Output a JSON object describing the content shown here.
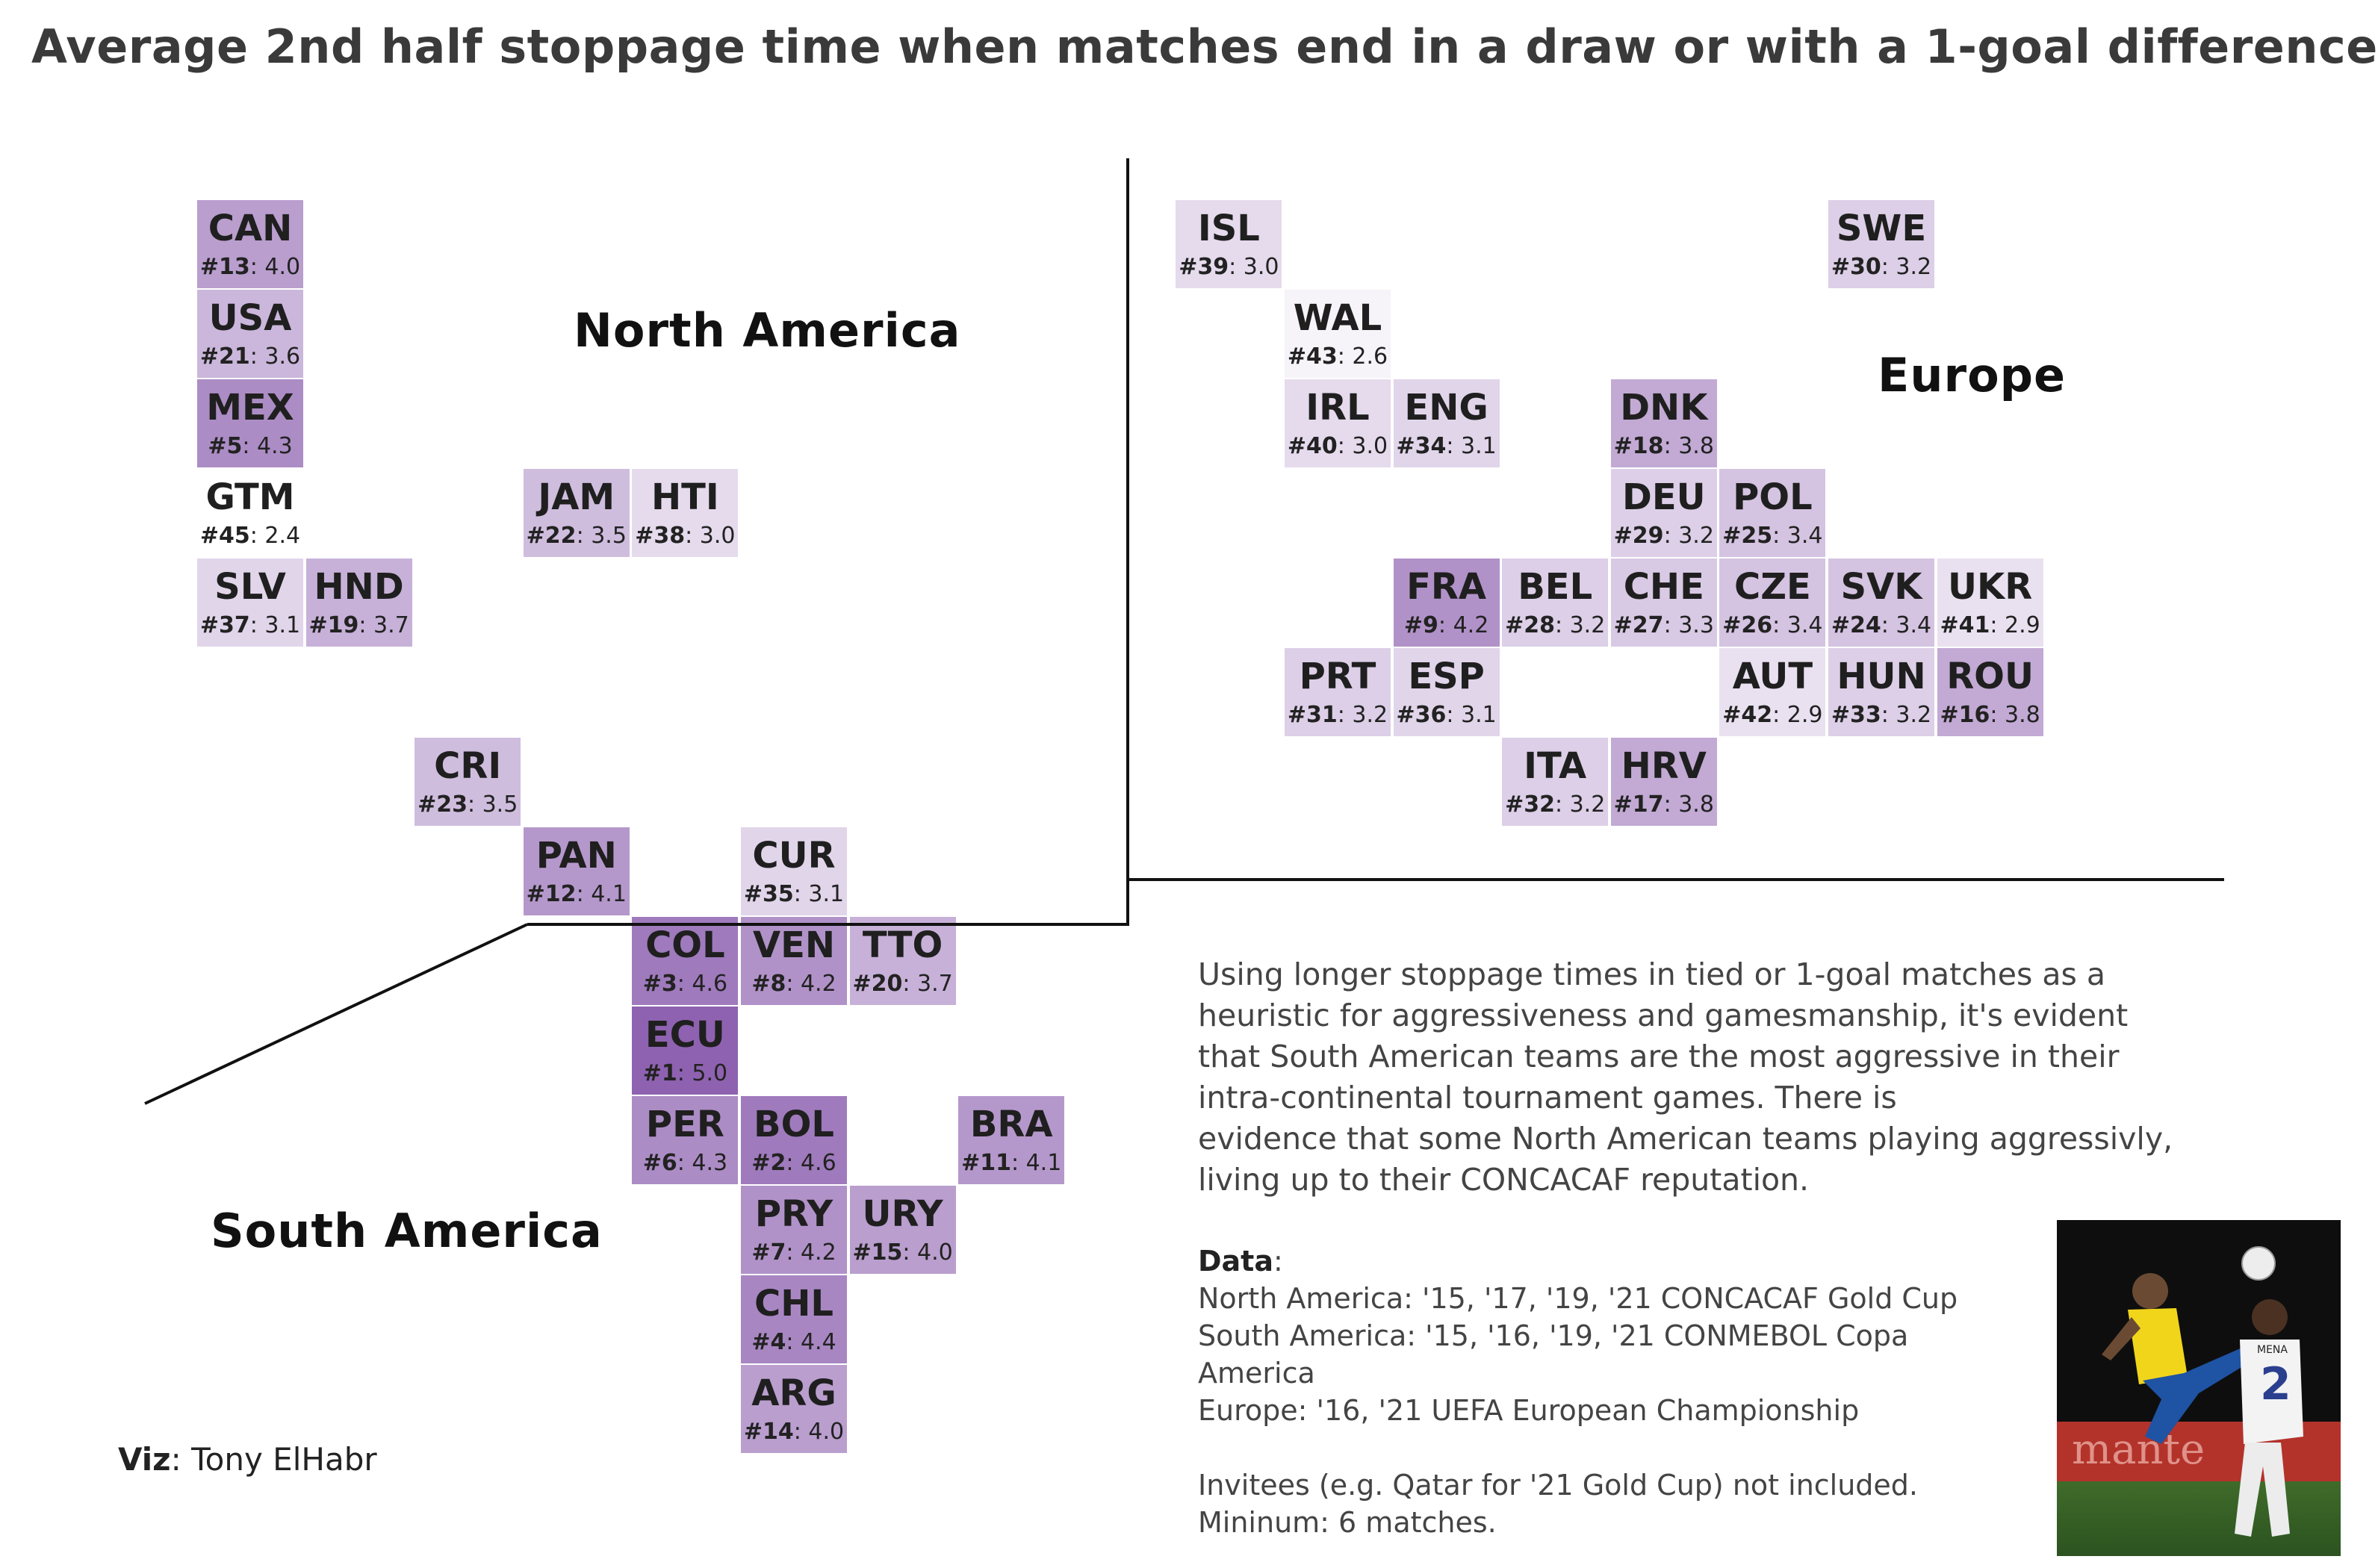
{
  "title": "Average 2nd half stoppage time when matches end in a draw or with a 1-goal difference",
  "regions": {
    "north_america": "North America",
    "europe": "Europe",
    "south_america": "South America"
  },
  "chart_data": {
    "type": "heatmap",
    "title": "Average 2nd half stoppage time when matches end in a draw or with a 1-goal difference",
    "value_range": [
      2.4,
      5.0
    ],
    "colors": {
      "low": "#ffffff",
      "high": "#8e62b0"
    },
    "cells": [
      {
        "code": "CAN",
        "rank": 13,
        "value": 4.0,
        "region": "North America",
        "col": 0,
        "row": 0
      },
      {
        "code": "USA",
        "rank": 21,
        "value": 3.6,
        "region": "North America",
        "col": 0,
        "row": 1
      },
      {
        "code": "MEX",
        "rank": 5,
        "value": 4.3,
        "region": "North America",
        "col": 0,
        "row": 2
      },
      {
        "code": "GTM",
        "rank": 45,
        "value": 2.4,
        "region": "North America",
        "col": 0,
        "row": 3
      },
      {
        "code": "SLV",
        "rank": 37,
        "value": 3.1,
        "region": "North America",
        "col": 0,
        "row": 4
      },
      {
        "code": "HND",
        "rank": 19,
        "value": 3.7,
        "region": "North America",
        "col": 1,
        "row": 4
      },
      {
        "code": "JAM",
        "rank": 22,
        "value": 3.5,
        "region": "North America",
        "col": 3,
        "row": 3
      },
      {
        "code": "HTI",
        "rank": 38,
        "value": 3.0,
        "region": "North America",
        "col": 4,
        "row": 3
      },
      {
        "code": "CRI",
        "rank": 23,
        "value": 3.5,
        "region": "North America",
        "col": 2,
        "row": 6
      },
      {
        "code": "PAN",
        "rank": 12,
        "value": 4.1,
        "region": "North America",
        "col": 3,
        "row": 7
      },
      {
        "code": "CUR",
        "rank": 35,
        "value": 3.1,
        "region": "North America",
        "col": 5,
        "row": 7
      },
      {
        "code": "COL",
        "rank": 3,
        "value": 4.6,
        "region": "South America",
        "col": 4,
        "row": 8
      },
      {
        "code": "VEN",
        "rank": 8,
        "value": 4.2,
        "region": "South America",
        "col": 5,
        "row": 8
      },
      {
        "code": "TTO",
        "rank": 20,
        "value": 3.7,
        "region": "North America",
        "col": 6,
        "row": 8
      },
      {
        "code": "ECU",
        "rank": 1,
        "value": 5.0,
        "region": "South America",
        "col": 4,
        "row": 9
      },
      {
        "code": "PER",
        "rank": 6,
        "value": 4.3,
        "region": "South America",
        "col": 4,
        "row": 10
      },
      {
        "code": "BOL",
        "rank": 2,
        "value": 4.6,
        "region": "South America",
        "col": 5,
        "row": 10
      },
      {
        "code": "BRA",
        "rank": 11,
        "value": 4.1,
        "region": "South America",
        "col": 7,
        "row": 10
      },
      {
        "code": "PRY",
        "rank": 7,
        "value": 4.2,
        "region": "South America",
        "col": 5,
        "row": 11
      },
      {
        "code": "URY",
        "rank": 15,
        "value": 4.0,
        "region": "South America",
        "col": 6,
        "row": 11
      },
      {
        "code": "CHL",
        "rank": 4,
        "value": 4.4,
        "region": "South America",
        "col": 5,
        "row": 12
      },
      {
        "code": "ARG",
        "rank": 14,
        "value": 4.0,
        "region": "South America",
        "col": 5,
        "row": 13
      },
      {
        "code": "ISL",
        "rank": 39,
        "value": 3.0,
        "region": "Europe",
        "col": 9,
        "row": 0
      },
      {
        "code": "SWE",
        "rank": 30,
        "value": 3.2,
        "region": "Europe",
        "col": 15,
        "row": 0
      },
      {
        "code": "WAL",
        "rank": 43,
        "value": 2.6,
        "region": "Europe",
        "col": 10,
        "row": 1
      },
      {
        "code": "IRL",
        "rank": 40,
        "value": 3.0,
        "region": "Europe",
        "col": 10,
        "row": 2
      },
      {
        "code": "ENG",
        "rank": 34,
        "value": 3.1,
        "region": "Europe",
        "col": 11,
        "row": 2
      },
      {
        "code": "DNK",
        "rank": 18,
        "value": 3.8,
        "region": "Europe",
        "col": 13,
        "row": 2
      },
      {
        "code": "DEU",
        "rank": 29,
        "value": 3.2,
        "region": "Europe",
        "col": 13,
        "row": 3
      },
      {
        "code": "POL",
        "rank": 25,
        "value": 3.4,
        "region": "Europe",
        "col": 14,
        "row": 3
      },
      {
        "code": "FRA",
        "rank": 9,
        "value": 4.2,
        "region": "Europe",
        "col": 11,
        "row": 4
      },
      {
        "code": "BEL",
        "rank": 28,
        "value": 3.2,
        "region": "Europe",
        "col": 12,
        "row": 4
      },
      {
        "code": "CHE",
        "rank": 27,
        "value": 3.3,
        "region": "Europe",
        "col": 13,
        "row": 4
      },
      {
        "code": "CZE",
        "rank": 26,
        "value": 3.4,
        "region": "Europe",
        "col": 14,
        "row": 4
      },
      {
        "code": "SVK",
        "rank": 24,
        "value": 3.4,
        "region": "Europe",
        "col": 15,
        "row": 4
      },
      {
        "code": "UKR",
        "rank": 41,
        "value": 2.9,
        "region": "Europe",
        "col": 16,
        "row": 4
      },
      {
        "code": "PRT",
        "rank": 31,
        "value": 3.2,
        "region": "Europe",
        "col": 10,
        "row": 5
      },
      {
        "code": "ESP",
        "rank": 36,
        "value": 3.1,
        "region": "Europe",
        "col": 11,
        "row": 5
      },
      {
        "code": "AUT",
        "rank": 42,
        "value": 2.9,
        "region": "Europe",
        "col": 14,
        "row": 5
      },
      {
        "code": "HUN",
        "rank": 33,
        "value": 3.2,
        "region": "Europe",
        "col": 15,
        "row": 5
      },
      {
        "code": "ROU",
        "rank": 16,
        "value": 3.8,
        "region": "Europe",
        "col": 16,
        "row": 5
      },
      {
        "code": "ITA",
        "rank": 32,
        "value": 3.2,
        "region": "Europe",
        "col": 12,
        "row": 6
      },
      {
        "code": "HRV",
        "rank": 17,
        "value": 3.8,
        "region": "Europe",
        "col": 13,
        "row": 6
      }
    ]
  },
  "note": {
    "lines": [
      "Using longer stoppage times in tied or 1-goal matches as a",
      "heuristic for aggressiveness and gamesmanship, it's evident",
      "that South American teams are the most aggressive in their",
      "intra-continental tournament games. There is",
      "evidence that some North American teams playing aggressivly,",
      "living up to their CONCACAF reputation."
    ]
  },
  "data_info": {
    "label": "Data",
    "north_america": "North America: '15, '17, '19, '21 CONCACAF Gold Cup",
    "south_america": "South America: '15, '16, '19, '21 CONMEBOL Copa America",
    "europe": "Europe: '16, '21 UEFA European Championship",
    "invitees": "Invitees (e.g. Qatar for '21 Gold Cup) not included.",
    "minimum": "Mininum: 6 matches."
  },
  "credit": {
    "label": "Viz",
    "name": "Tony ElHabr"
  },
  "photo": {
    "jersey_name": "MENA",
    "jersey_number": "2",
    "banner_text": "mante"
  }
}
